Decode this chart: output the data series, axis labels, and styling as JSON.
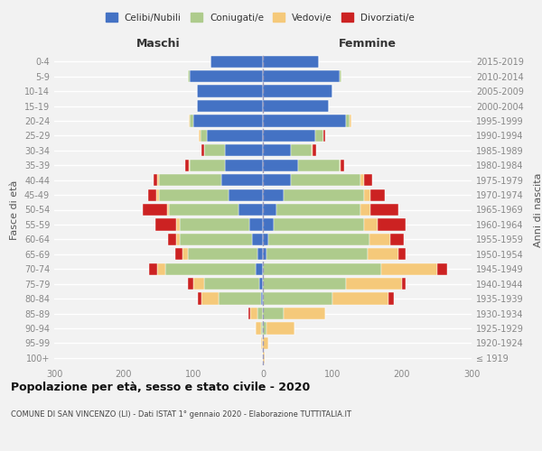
{
  "age_groups": [
    "100+",
    "95-99",
    "90-94",
    "85-89",
    "80-84",
    "75-79",
    "70-74",
    "65-69",
    "60-64",
    "55-59",
    "50-54",
    "45-49",
    "40-44",
    "35-39",
    "30-34",
    "25-29",
    "20-24",
    "15-19",
    "10-14",
    "5-9",
    "0-4"
  ],
  "birth_years": [
    "≤ 1919",
    "1920-1924",
    "1925-1929",
    "1930-1934",
    "1935-1939",
    "1940-1944",
    "1945-1949",
    "1950-1954",
    "1955-1959",
    "1960-1964",
    "1965-1969",
    "1970-1974",
    "1975-1979",
    "1980-1984",
    "1985-1989",
    "1990-1994",
    "1995-1999",
    "2000-2004",
    "2005-2009",
    "2010-2014",
    "2015-2019"
  ],
  "colors": {
    "celibe": "#4472C4",
    "coniugato": "#AECB8C",
    "vedovo": "#F5C97A",
    "divorziato": "#CC2222"
  },
  "maschi": {
    "celibe": [
      0,
      0,
      0,
      0,
      3,
      5,
      10,
      8,
      15,
      20,
      35,
      50,
      60,
      55,
      55,
      80,
      100,
      95,
      95,
      105,
      75
    ],
    "coniugato": [
      0,
      0,
      2,
      8,
      60,
      80,
      130,
      100,
      105,
      100,
      100,
      100,
      90,
      50,
      30,
      10,
      5,
      0,
      0,
      3,
      0
    ],
    "vedovo": [
      0,
      2,
      8,
      10,
      25,
      15,
      12,
      8,
      5,
      5,
      3,
      3,
      2,
      2,
      0,
      2,
      2,
      0,
      0,
      0,
      0
    ],
    "divorziato": [
      0,
      0,
      0,
      3,
      5,
      8,
      12,
      10,
      12,
      30,
      35,
      12,
      5,
      5,
      3,
      0,
      0,
      0,
      0,
      0,
      0
    ]
  },
  "femmine": {
    "celibe": [
      0,
      0,
      0,
      0,
      0,
      0,
      0,
      5,
      8,
      15,
      20,
      30,
      40,
      50,
      40,
      75,
      120,
      95,
      100,
      110,
      80
    ],
    "coniugato": [
      0,
      0,
      5,
      30,
      100,
      120,
      170,
      145,
      145,
      130,
      120,
      115,
      100,
      60,
      30,
      12,
      5,
      0,
      0,
      3,
      0
    ],
    "vedovo": [
      2,
      8,
      40,
      60,
      80,
      80,
      80,
      45,
      30,
      20,
      15,
      10,
      5,
      2,
      2,
      0,
      2,
      0,
      0,
      0,
      0
    ],
    "divorziato": [
      0,
      0,
      0,
      0,
      8,
      5,
      15,
      10,
      20,
      40,
      40,
      20,
      12,
      5,
      5,
      2,
      0,
      0,
      0,
      0,
      0
    ]
  },
  "xlim": 300,
  "title": "Popolazione per età, sesso e stato civile - 2020",
  "subtitle": "COMUNE DI SAN VINCENZO (LI) - Dati ISTAT 1° gennaio 2020 - Elaborazione TUTTITALIA.IT",
  "xlabel_left": "Maschi",
  "xlabel_right": "Femmine",
  "ylabel_left": "Fasce di età",
  "ylabel_right": "Anni di nascita",
  "legend_labels": [
    "Celibi/Nubili",
    "Coniugati/e",
    "Vedovi/e",
    "Divorziati/e"
  ],
  "background_color": "#f2f2f2",
  "grid_color": "#ffffff",
  "axis_label_color": "#555555",
  "tick_color": "#888888"
}
